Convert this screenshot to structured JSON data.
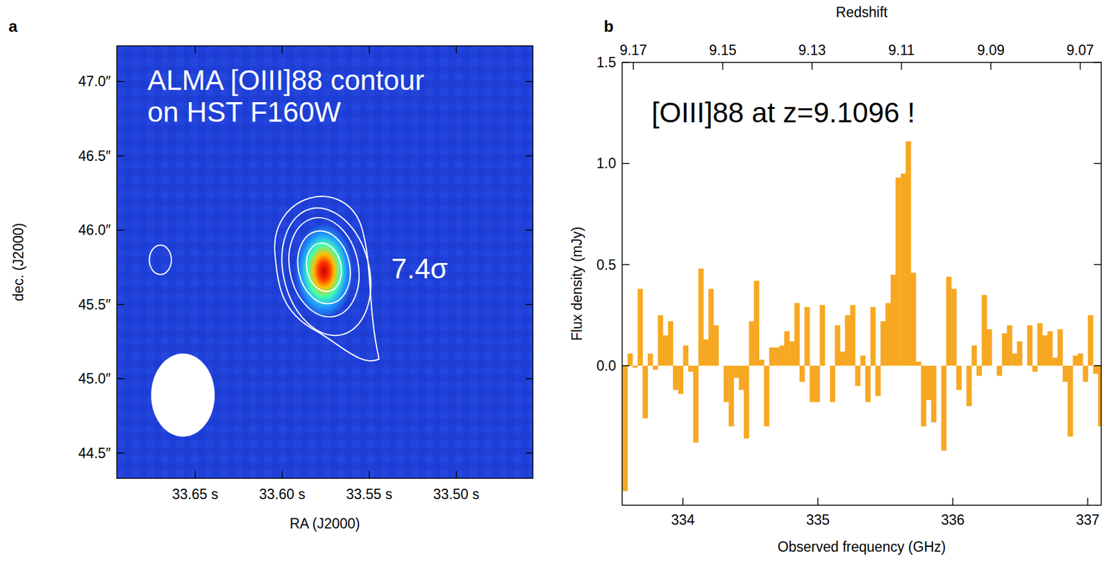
{
  "chart_data": [
    {
      "type": "image",
      "panel": "a",
      "xlabel": "RA (J2000)",
      "ylabel": "dec. (J2000)",
      "xlim": [
        33.695,
        33.456
      ],
      "ylim": [
        44.33,
        47.24
      ],
      "xticks": [
        {
          "value": 33.65,
          "label": "33.65 s"
        },
        {
          "value": 33.6,
          "label": "33.60 s"
        },
        {
          "value": 33.55,
          "label": "33.55 s"
        },
        {
          "value": 33.5,
          "label": "33.50 s"
        }
      ],
      "yticks": [
        {
          "value": 44.5,
          "label": "44.5″"
        },
        {
          "value": 45.0,
          "label": "45.0″"
        },
        {
          "value": 45.5,
          "label": "45.5″"
        },
        {
          "value": 46.0,
          "label": "46.0″"
        },
        {
          "value": 46.5,
          "label": "46.5″"
        },
        {
          "value": 47.0,
          "label": "47.0″"
        }
      ],
      "annotations": [
        "ALMA [OIII]88 contour",
        "on HST F160W"
      ],
      "sources": [
        {
          "x": 33.576,
          "y": 45.75,
          "label": "7.4σ"
        },
        {
          "x": 33.67,
          "y": 45.8
        }
      ]
    },
    {
      "type": "bar",
      "panel": "b",
      "color": "#f7a823",
      "xlabel": "Observed frequency (GHz)",
      "ylabel": "Flux density (mJy)",
      "x2label": "Redshift",
      "annotations": [
        "[OIII]88 at z=9.1096 !"
      ],
      "xlim": [
        333.55,
        337.1
      ],
      "ylim": [
        -0.69,
        1.5
      ],
      "xticks": [
        334,
        335,
        336,
        337
      ],
      "yticks": [
        {
          "value": 0,
          "label": "0.0"
        },
        {
          "value": 0.5,
          "label": "0.5"
        },
        {
          "value": 1.0,
          "label": "1.0"
        },
        {
          "value": 1.5,
          "label": "1.5"
        }
      ],
      "x2lim": [
        9.1725,
        9.0653
      ],
      "x2ticks": [
        9.17,
        9.15,
        9.13,
        9.11,
        9.09,
        9.07
      ],
      "x": [
        333.57,
        333.608,
        333.645,
        333.683,
        333.72,
        333.758,
        333.795,
        333.833,
        333.87,
        333.908,
        333.945,
        333.983,
        334.02,
        334.058,
        334.095,
        334.133,
        334.17,
        334.208,
        334.245,
        334.283,
        334.32,
        334.358,
        334.395,
        334.433,
        334.47,
        334.508,
        334.545,
        334.583,
        334.62,
        334.658,
        334.695,
        334.733,
        334.77,
        334.808,
        334.845,
        334.883,
        334.92,
        334.958,
        334.995,
        335.033,
        335.07,
        335.108,
        335.145,
        335.183,
        335.22,
        335.258,
        335.295,
        335.333,
        335.37,
        335.408,
        335.445,
        335.483,
        335.52,
        335.558,
        335.595,
        335.633,
        335.67,
        335.708,
        335.745,
        335.783,
        335.82,
        335.858,
        335.895,
        335.933,
        335.97,
        336.008,
        336.045,
        336.083,
        336.12,
        336.158,
        336.195,
        336.233,
        336.27,
        336.308,
        336.345,
        336.383,
        336.42,
        336.458,
        336.495,
        336.533,
        336.57,
        336.608,
        336.645,
        336.683,
        336.72,
        336.758,
        336.795,
        336.833,
        336.87,
        336.908,
        336.945,
        336.983,
        337.02,
        337.058,
        337.095
      ],
      "values": [
        -0.62,
        0.06,
        -0.01,
        0.38,
        -0.26,
        0.06,
        -0.02,
        0.25,
        0.15,
        0.22,
        -0.12,
        -0.14,
        0.1,
        -0.03,
        -0.38,
        0.48,
        0.13,
        0.38,
        0.2,
        0.0,
        -0.18,
        -0.3,
        -0.06,
        -0.12,
        -0.36,
        0.22,
        0.42,
        0.03,
        -0.3,
        0.09,
        0.09,
        0.1,
        0.17,
        0.12,
        0.31,
        -0.08,
        0.29,
        -0.18,
        -0.18,
        0.3,
        0.0,
        -0.18,
        0.2,
        0.07,
        0.25,
        0.3,
        -0.1,
        0.05,
        -0.18,
        0.29,
        -0.15,
        0.22,
        0.31,
        0.45,
        0.93,
        0.95,
        1.11,
        0.46,
        0.02,
        -0.3,
        -0.17,
        -0.28,
        0.0,
        -0.42,
        0.44,
        0.38,
        -0.12,
        0.0,
        -0.2,
        0.1,
        -0.05,
        0.35,
        0.18,
        0.0,
        -0.05,
        0.16,
        0.2,
        0.06,
        0.12,
        0.0,
        0.2,
        -0.03,
        0.21,
        0.15,
        0.17,
        0.04,
        0.18,
        -0.08,
        -0.35,
        0.05,
        0.06,
        -0.08,
        0.25,
        -0.04,
        -0.3
      ]
    }
  ]
}
